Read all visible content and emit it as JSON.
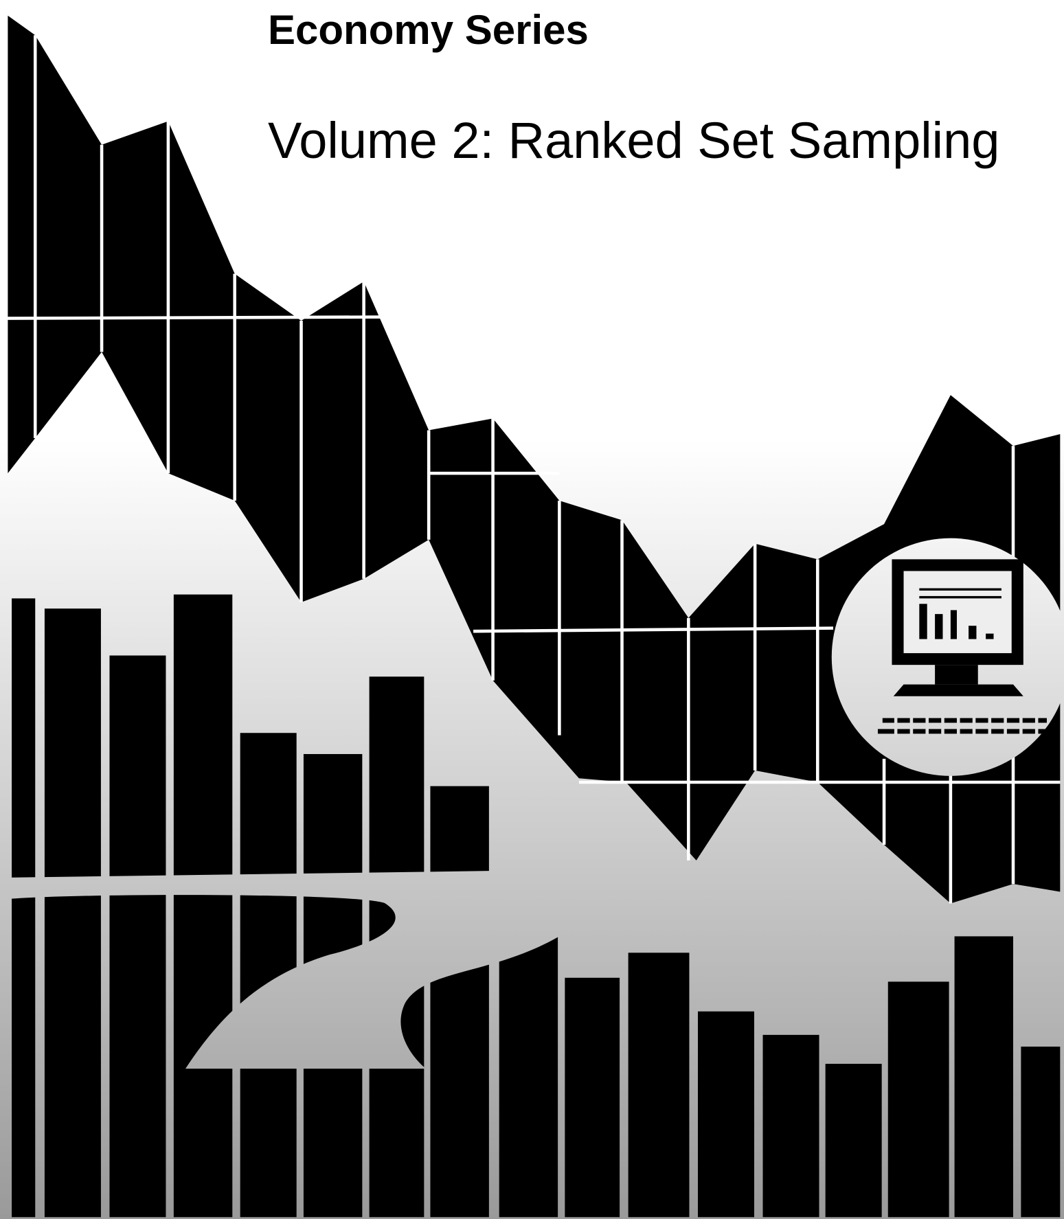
{
  "header": {
    "series": "Economy Series",
    "title": "Volume 2: Ranked Set Sampling"
  }
}
